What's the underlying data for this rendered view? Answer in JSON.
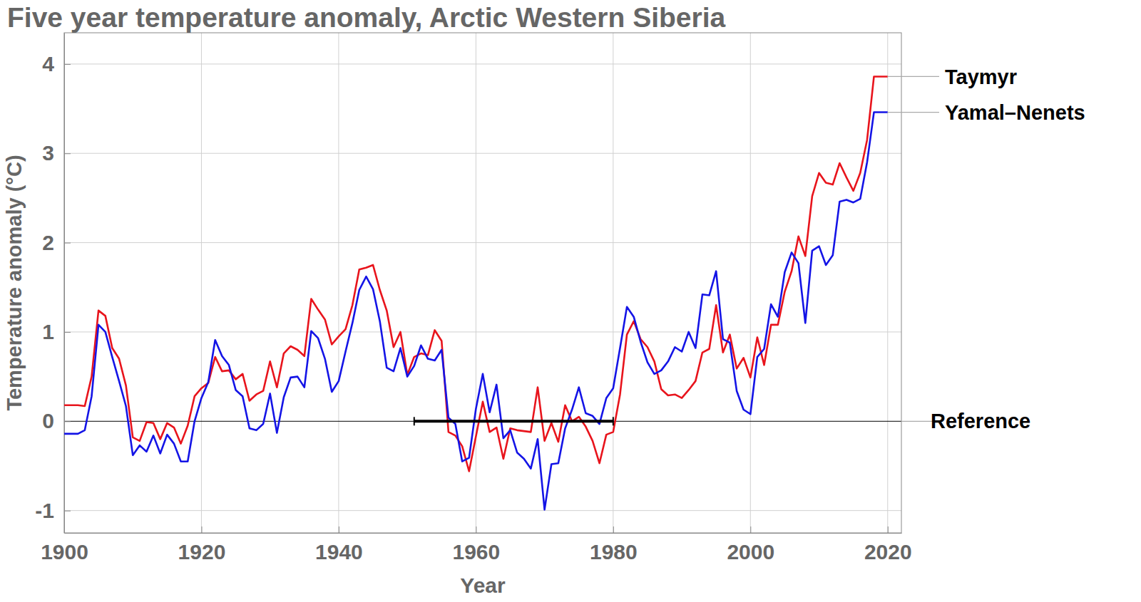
{
  "chart_data": {
    "type": "line",
    "title": "Five year temperature anomaly, Arctic Western Siberia",
    "x_label": "Year",
    "y_label": "Temperature anomaly (°C)",
    "x": [
      1900,
      1901,
      1902,
      1903,
      1904,
      1905,
      1906,
      1907,
      1908,
      1909,
      1910,
      1911,
      1912,
      1913,
      1914,
      1915,
      1916,
      1917,
      1918,
      1919,
      1920,
      1921,
      1922,
      1923,
      1924,
      1925,
      1926,
      1927,
      1928,
      1929,
      1930,
      1931,
      1932,
      1933,
      1934,
      1935,
      1936,
      1937,
      1938,
      1939,
      1940,
      1941,
      1942,
      1943,
      1944,
      1945,
      1946,
      1947,
      1948,
      1949,
      1950,
      1951,
      1952,
      1953,
      1954,
      1955,
      1956,
      1957,
      1958,
      1959,
      1960,
      1961,
      1962,
      1963,
      1964,
      1965,
      1966,
      1967,
      1968,
      1969,
      1970,
      1971,
      1972,
      1973,
      1974,
      1975,
      1976,
      1977,
      1978,
      1979,
      1980,
      1981,
      1982,
      1983,
      1984,
      1985,
      1986,
      1987,
      1988,
      1989,
      1990,
      1991,
      1992,
      1993,
      1994,
      1995,
      1996,
      1997,
      1998,
      1999,
      2000,
      2001,
      2002,
      2003,
      2004,
      2005,
      2006,
      2007,
      2008,
      2009,
      2010,
      2011,
      2012,
      2013,
      2014,
      2015,
      2016,
      2017,
      2018,
      2019,
      2020
    ],
    "series": [
      {
        "name": "Taymyr",
        "color": "#e8141c",
        "values": [
          0.18,
          0.18,
          0.18,
          0.17,
          0.5,
          1.24,
          1.18,
          0.82,
          0.7,
          0.4,
          -0.18,
          -0.22,
          -0.01,
          -0.02,
          -0.2,
          -0.02,
          -0.07,
          -0.25,
          -0.05,
          0.28,
          0.37,
          0.43,
          0.72,
          0.56,
          0.57,
          0.47,
          0.53,
          0.23,
          0.3,
          0.34,
          0.67,
          0.38,
          0.76,
          0.84,
          0.8,
          0.73,
          1.37,
          1.25,
          1.14,
          0.86,
          0.95,
          1.03,
          1.3,
          1.7,
          1.72,
          1.75,
          1.47,
          1.24,
          0.83,
          1.0,
          0.52,
          0.72,
          0.76,
          0.74,
          1.02,
          0.9,
          -0.12,
          -0.16,
          -0.28,
          -0.56,
          -0.17,
          0.22,
          -0.12,
          -0.07,
          -0.42,
          -0.08,
          -0.1,
          -0.11,
          -0.12,
          0.38,
          -0.22,
          -0.02,
          -0.23,
          0.18,
          0,
          0.05,
          -0.06,
          -0.22,
          -0.47,
          -0.15,
          -0.12,
          0.3,
          0.97,
          1.12,
          0.92,
          0.83,
          0.67,
          0.36,
          0.29,
          0.3,
          0.26,
          0.35,
          0.45,
          0.77,
          0.81,
          1.3,
          0.77,
          0.97,
          0.59,
          0.71,
          0.49,
          0.94,
          0.63,
          1.08,
          1.08,
          1.45,
          1.68,
          2.07,
          1.85,
          2.52,
          2.78,
          2.67,
          2.65,
          2.89,
          2.73,
          2.58,
          2.78,
          3.15,
          3.86,
          3.86,
          3.86
        ]
      },
      {
        "name": "Yamal–Nenets",
        "color": "#1414e6",
        "values": [
          -0.14,
          -0.14,
          -0.14,
          -0.1,
          0.28,
          1.08,
          1.0,
          0.72,
          0.45,
          0.17,
          -0.38,
          -0.27,
          -0.34,
          -0.16,
          -0.36,
          -0.15,
          -0.25,
          -0.45,
          -0.45,
          0,
          0.26,
          0.44,
          0.91,
          0.73,
          0.63,
          0.35,
          0.28,
          -0.08,
          -0.1,
          -0.03,
          0.31,
          -0.13,
          0.27,
          0.49,
          0.5,
          0.38,
          1.01,
          0.93,
          0.7,
          0.33,
          0.45,
          0.78,
          1.1,
          1.47,
          1.62,
          1.48,
          1.12,
          0.6,
          0.56,
          0.82,
          0.5,
          0.62,
          0.85,
          0.7,
          0.68,
          0.8,
          0.04,
          -0.03,
          -0.45,
          -0.41,
          0.14,
          0.53,
          0.1,
          0.41,
          -0.19,
          -0.1,
          -0.35,
          -0.42,
          -0.53,
          -0.2,
          -0.99,
          -0.48,
          -0.47,
          -0.08,
          0.13,
          0.38,
          0.09,
          0.06,
          -0.03,
          0.26,
          0.37,
          0.82,
          1.28,
          1.17,
          0.89,
          0.66,
          0.53,
          0.57,
          0.67,
          0.83,
          0.78,
          1.0,
          0.82,
          1.42,
          1.41,
          1.68,
          0.92,
          0.88,
          0.34,
          0.13,
          0.08,
          0.72,
          0.81,
          1.31,
          1.17,
          1.67,
          1.89,
          1.77,
          1.1,
          1.91,
          1.96,
          1.75,
          1.86,
          2.46,
          2.48,
          2.45,
          2.49,
          2.9,
          3.46,
          3.46,
          3.46
        ]
      }
    ],
    "annotations": [
      {
        "text": "Reference",
        "x": [
          1951,
          1980
        ],
        "y": 0,
        "color": "#000000"
      }
    ],
    "xlim": [
      1900,
      2022
    ],
    "ylim": [
      -1.25,
      4.35
    ],
    "xticks": [
      1900,
      1920,
      1940,
      1960,
      1980,
      2000,
      2020
    ],
    "yticks": [
      -1,
      0,
      1,
      2,
      3,
      4
    ],
    "grid": true
  }
}
